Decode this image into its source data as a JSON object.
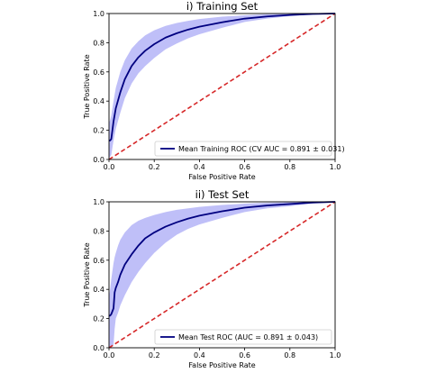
{
  "chart_data": [
    {
      "type": "line",
      "title": "i) Training Set",
      "xlabel": "False Positive Rate",
      "ylabel": "True Positive Rate",
      "xlim": [
        0,
        1
      ],
      "ylim": [
        0,
        1
      ],
      "xticks": [
        "0.0",
        "0.2",
        "0.4",
        "0.6",
        "0.8",
        "1.0"
      ],
      "yticks": [
        "0.0",
        "0.2",
        "0.4",
        "0.6",
        "0.8",
        "1.0"
      ],
      "grid": false,
      "legend_position": "bottom-right",
      "series": [
        {
          "name": "Mean Training ROC (CV AUC = 0.891 ± 0.031)",
          "color": "#000080",
          "x": [
            0,
            0.005,
            0.01,
            0.02,
            0.03,
            0.05,
            0.07,
            0.1,
            0.13,
            0.16,
            0.2,
            0.25,
            0.3,
            0.35,
            0.4,
            0.5,
            0.6,
            0.7,
            0.8,
            0.9,
            1.0
          ],
          "y": [
            0.13,
            0.13,
            0.14,
            0.26,
            0.35,
            0.46,
            0.55,
            0.64,
            0.7,
            0.745,
            0.79,
            0.835,
            0.865,
            0.89,
            0.91,
            0.94,
            0.965,
            0.98,
            0.99,
            0.997,
            1.0
          ]
        },
        {
          "name": "±1 std. dev. band",
          "color": "#aaaaf5",
          "x": [
            0,
            0.005,
            0.01,
            0.02,
            0.03,
            0.05,
            0.07,
            0.1,
            0.13,
            0.16,
            0.2,
            0.25,
            0.3,
            0.35,
            0.4,
            0.5,
            0.6,
            0.7,
            0.8,
            0.9,
            1.0
          ],
          "upper": [
            0.25,
            0.27,
            0.3,
            0.4,
            0.49,
            0.6,
            0.68,
            0.76,
            0.81,
            0.85,
            0.885,
            0.915,
            0.935,
            0.95,
            0.962,
            0.978,
            0.988,
            0.995,
            0.998,
            1.0,
            1.0
          ],
          "lower": [
            0.01,
            0.02,
            0.03,
            0.13,
            0.21,
            0.32,
            0.42,
            0.52,
            0.59,
            0.64,
            0.695,
            0.755,
            0.795,
            0.83,
            0.858,
            0.902,
            0.942,
            0.965,
            0.982,
            0.994,
            1.0
          ]
        },
        {
          "name": "chance",
          "color": "#d62728",
          "x": [
            0,
            1
          ],
          "y": [
            0,
            1
          ]
        }
      ]
    },
    {
      "type": "line",
      "title": "ii) Test Set",
      "xlabel": "False Positive Rate",
      "ylabel": "True Positive Rate",
      "xlim": [
        0,
        1
      ],
      "ylim": [
        0,
        1
      ],
      "xticks": [
        "0.0",
        "0.2",
        "0.4",
        "0.6",
        "0.8",
        "1.0"
      ],
      "yticks": [
        "0.0",
        "0.2",
        "0.4",
        "0.6",
        "0.8",
        "1.0"
      ],
      "grid": false,
      "legend_position": "bottom-right",
      "series": [
        {
          "name": "Mean Test ROC (AUC = 0.891 ± 0.043)",
          "color": "#000080",
          "x": [
            0,
            0.005,
            0.01,
            0.02,
            0.025,
            0.03,
            0.04,
            0.05,
            0.07,
            0.1,
            0.13,
            0.16,
            0.2,
            0.25,
            0.3,
            0.35,
            0.4,
            0.5,
            0.6,
            0.7,
            0.8,
            0.9,
            1.0
          ],
          "y": [
            0.22,
            0.22,
            0.23,
            0.27,
            0.38,
            0.41,
            0.45,
            0.5,
            0.57,
            0.64,
            0.7,
            0.75,
            0.79,
            0.83,
            0.86,
            0.885,
            0.905,
            0.935,
            0.96,
            0.975,
            0.985,
            0.995,
            1.0
          ]
        },
        {
          "name": "±1 std. dev. band",
          "color": "#aaaaf5",
          "x": [
            0,
            0.005,
            0.01,
            0.02,
            0.025,
            0.03,
            0.04,
            0.05,
            0.07,
            0.1,
            0.13,
            0.16,
            0.2,
            0.25,
            0.3,
            0.35,
            0.4,
            0.5,
            0.6,
            0.7,
            0.8,
            0.9,
            1.0
          ],
          "upper": [
            0.35,
            0.4,
            0.47,
            0.58,
            0.62,
            0.65,
            0.7,
            0.74,
            0.79,
            0.84,
            0.87,
            0.89,
            0.91,
            0.93,
            0.945,
            0.955,
            0.965,
            0.978,
            0.988,
            0.994,
            0.998,
            1.0,
            1.0
          ],
          "lower": [
            0.0,
            0.0,
            0.0,
            0.02,
            0.13,
            0.2,
            0.24,
            0.29,
            0.36,
            0.45,
            0.52,
            0.58,
            0.65,
            0.72,
            0.775,
            0.815,
            0.845,
            0.89,
            0.93,
            0.955,
            0.97,
            0.99,
            1.0
          ]
        },
        {
          "name": "chance",
          "color": "#d62728",
          "x": [
            0,
            1
          ],
          "y": [
            0,
            1
          ]
        }
      ]
    }
  ]
}
